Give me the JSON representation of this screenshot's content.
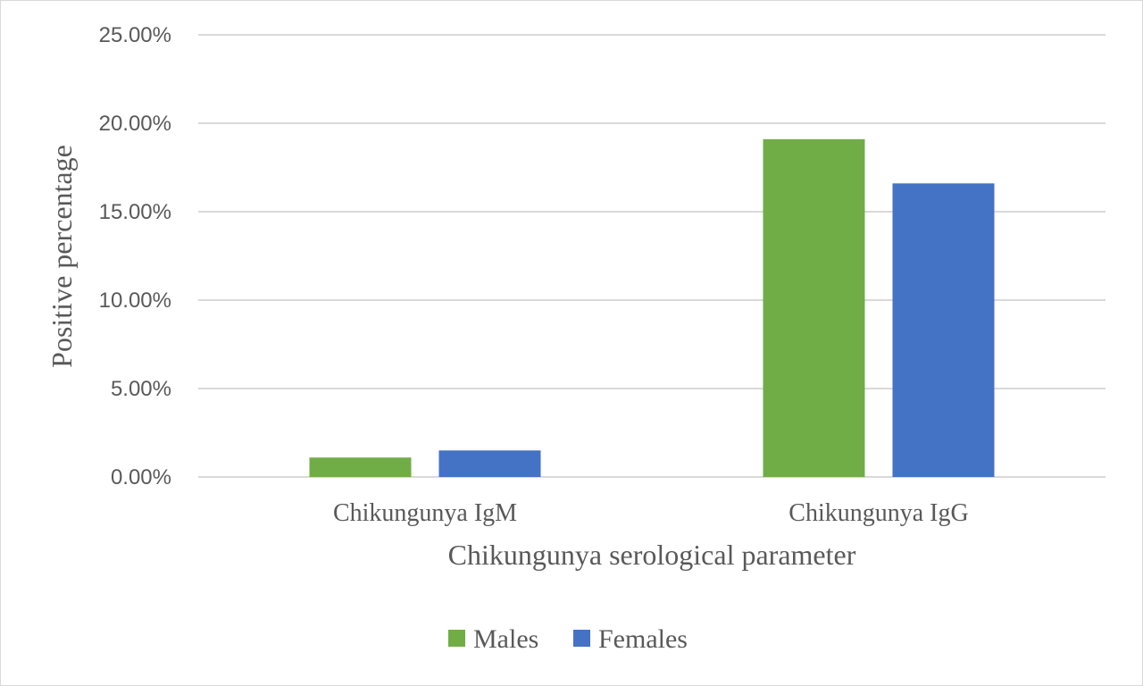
{
  "chart_data": {
    "type": "bar",
    "categories": [
      "Chikungunya IgM",
      "Chikungunya IgG"
    ],
    "series": [
      {
        "name": "Males",
        "values": [
          1.1,
          19.1
        ],
        "color": "#70ad47"
      },
      {
        "name": "Females",
        "values": [
          1.5,
          16.6
        ],
        "color": "#4472c4"
      }
    ],
    "xlabel": "Chikungunya serological parameter",
    "ylabel": "Positive percentage",
    "ylim": [
      0,
      25
    ],
    "yticks": [
      0,
      5,
      10,
      15,
      20,
      25
    ],
    "ytick_labels": [
      "0.00%",
      "5.00%",
      "10.00%",
      "15.00%",
      "20.00%",
      "25.00%"
    ],
    "grid": true,
    "legend_position": "bottom",
    "gridline_color": "#d9d9d9"
  }
}
